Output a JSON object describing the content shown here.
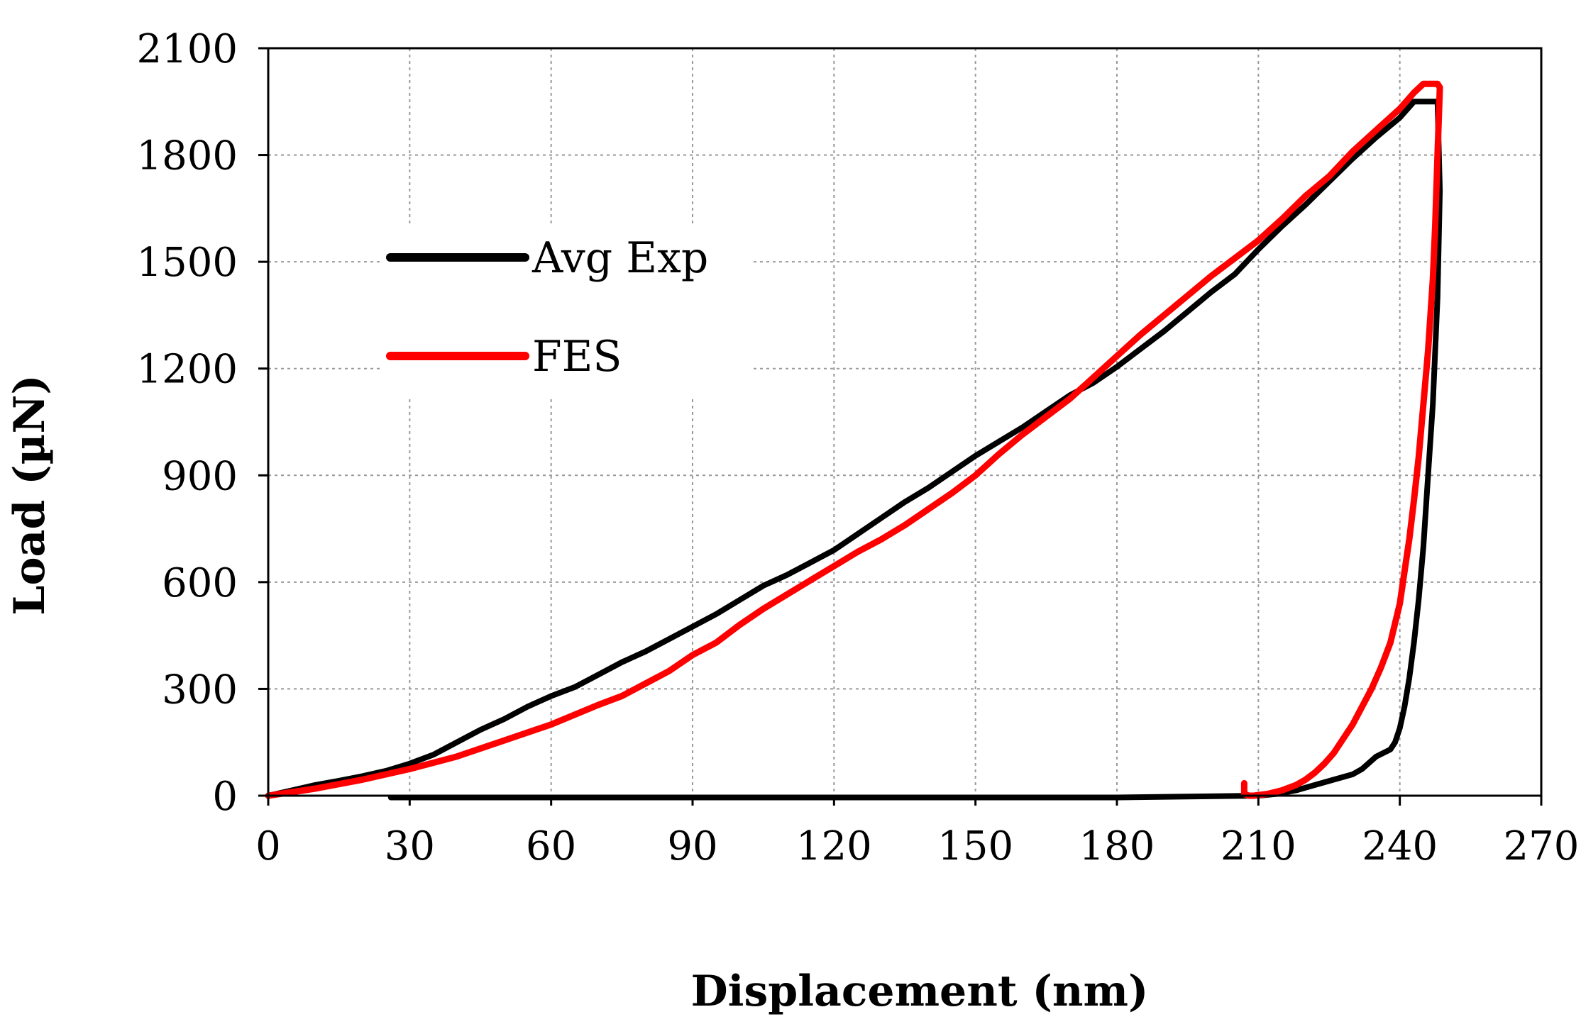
{
  "chart_data": {
    "type": "line",
    "title": "",
    "xlabel": "Displacement (nm)",
    "ylabel": "Load (µN)",
    "xlim": [
      0,
      270
    ],
    "ylim": [
      0,
      2100
    ],
    "x_ticks": [
      0,
      30,
      60,
      90,
      120,
      150,
      180,
      210,
      240,
      270
    ],
    "y_ticks": [
      0,
      300,
      600,
      900,
      1200,
      1500,
      1800,
      2100
    ],
    "grid": true,
    "legend_position": "upper-left",
    "colors": {
      "avg_exp": "#000000",
      "fes": "#ff0000",
      "grid": "#999999"
    },
    "series": [
      {
        "name": "Avg Exp",
        "color": "#000000",
        "points": [
          [
            0,
            0
          ],
          [
            5,
            15
          ],
          [
            10,
            30
          ],
          [
            15,
            42
          ],
          [
            20,
            55
          ],
          [
            25,
            70
          ],
          [
            30,
            90
          ],
          [
            35,
            115
          ],
          [
            40,
            150
          ],
          [
            45,
            185
          ],
          [
            50,
            215
          ],
          [
            55,
            250
          ],
          [
            60,
            280
          ],
          [
            65,
            305
          ],
          [
            70,
            340
          ],
          [
            75,
            375
          ],
          [
            80,
            405
          ],
          [
            85,
            440
          ],
          [
            90,
            475
          ],
          [
            95,
            510
          ],
          [
            100,
            550
          ],
          [
            105,
            590
          ],
          [
            110,
            620
          ],
          [
            115,
            655
          ],
          [
            120,
            690
          ],
          [
            125,
            735
          ],
          [
            130,
            780
          ],
          [
            135,
            825
          ],
          [
            140,
            865
          ],
          [
            145,
            910
          ],
          [
            150,
            955
          ],
          [
            155,
            995
          ],
          [
            160,
            1035
          ],
          [
            165,
            1080
          ],
          [
            170,
            1125
          ],
          [
            175,
            1160
          ],
          [
            180,
            1205
          ],
          [
            185,
            1255
          ],
          [
            190,
            1305
          ],
          [
            195,
            1360
          ],
          [
            200,
            1415
          ],
          [
            205,
            1465
          ],
          [
            210,
            1535
          ],
          [
            215,
            1600
          ],
          [
            220,
            1660
          ],
          [
            225,
            1725
          ],
          [
            230,
            1790
          ],
          [
            235,
            1850
          ],
          [
            240,
            1905
          ],
          [
            243,
            1950
          ],
          [
            248,
            1950
          ],
          [
            248.5,
            1700
          ],
          [
            248,
            1400
          ],
          [
            247,
            1100
          ],
          [
            246,
            900
          ],
          [
            245,
            700
          ],
          [
            244,
            550
          ],
          [
            243,
            430
          ],
          [
            242,
            330
          ],
          [
            241,
            250
          ],
          [
            240,
            190
          ],
          [
            239,
            150
          ],
          [
            238,
            130
          ],
          [
            235,
            110
          ],
          [
            232,
            75
          ],
          [
            230,
            60
          ],
          [
            226,
            45
          ],
          [
            222,
            30
          ],
          [
            218,
            15
          ],
          [
            214,
            5
          ],
          [
            210,
            0
          ],
          [
            180,
            -5
          ],
          [
            150,
            -5
          ],
          [
            120,
            -5
          ],
          [
            90,
            -5
          ],
          [
            60,
            -5
          ],
          [
            30,
            -5
          ],
          [
            26,
            -5
          ]
        ]
      },
      {
        "name": "FES",
        "color": "#ff0000",
        "points": [
          [
            0,
            0
          ],
          [
            10,
            20
          ],
          [
            20,
            45
          ],
          [
            30,
            75
          ],
          [
            40,
            110
          ],
          [
            50,
            155
          ],
          [
            60,
            200
          ],
          [
            70,
            255
          ],
          [
            75,
            280
          ],
          [
            80,
            315
          ],
          [
            85,
            350
          ],
          [
            90,
            395
          ],
          [
            95,
            430
          ],
          [
            100,
            480
          ],
          [
            105,
            525
          ],
          [
            110,
            565
          ],
          [
            115,
            605
          ],
          [
            120,
            645
          ],
          [
            125,
            685
          ],
          [
            130,
            720
          ],
          [
            135,
            760
          ],
          [
            140,
            805
          ],
          [
            145,
            850
          ],
          [
            150,
            900
          ],
          [
            155,
            960
          ],
          [
            160,
            1015
          ],
          [
            165,
            1065
          ],
          [
            170,
            1115
          ],
          [
            175,
            1175
          ],
          [
            180,
            1235
          ],
          [
            185,
            1295
          ],
          [
            190,
            1350
          ],
          [
            195,
            1405
          ],
          [
            200,
            1460
          ],
          [
            205,
            1510
          ],
          [
            210,
            1560
          ],
          [
            215,
            1620
          ],
          [
            220,
            1685
          ],
          [
            225,
            1740
          ],
          [
            230,
            1810
          ],
          [
            235,
            1870
          ],
          [
            240,
            1930
          ],
          [
            243,
            1975
          ],
          [
            245,
            2000
          ],
          [
            248,
            2000
          ],
          [
            248.5,
            1990
          ],
          [
            248,
            1800
          ],
          [
            247.5,
            1600
          ],
          [
            247,
            1450
          ],
          [
            246,
            1250
          ],
          [
            245,
            1100
          ],
          [
            244,
            950
          ],
          [
            243,
            830
          ],
          [
            242,
            720
          ],
          [
            241,
            630
          ],
          [
            240,
            540
          ],
          [
            238,
            430
          ],
          [
            236,
            360
          ],
          [
            234,
            300
          ],
          [
            232,
            250
          ],
          [
            230,
            200
          ],
          [
            228,
            160
          ],
          [
            226,
            120
          ],
          [
            224,
            90
          ],
          [
            222,
            65
          ],
          [
            220,
            45
          ],
          [
            218,
            30
          ],
          [
            215,
            15
          ],
          [
            212,
            5
          ],
          [
            209,
            0
          ],
          [
            208,
            0
          ],
          [
            207,
            5
          ],
          [
            207,
            35
          ]
        ]
      }
    ]
  }
}
